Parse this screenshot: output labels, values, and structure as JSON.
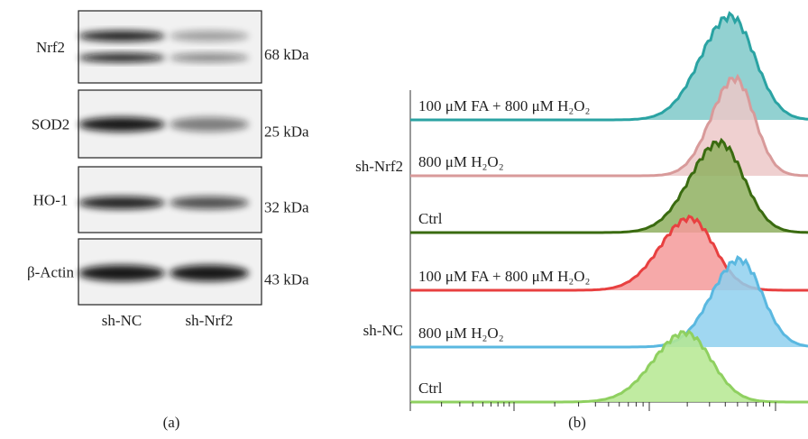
{
  "panel_a": {
    "label": "(a)",
    "rows": [
      {
        "protein": "Nrf2",
        "size": "68 kDa"
      },
      {
        "protein": "SOD2",
        "size": "25 kDa"
      },
      {
        "protein": "HO-1",
        "size": "32 kDa"
      },
      {
        "protein": "β-Actin",
        "size": "43 kDa"
      }
    ],
    "lanes": [
      "sh-NC",
      "sh-Nrf2"
    ]
  },
  "panel_b": {
    "label": "(b)",
    "groups": [
      {
        "name": "sh-Nrf2",
        "tracks": [
          "100 μM FA + 800 μM H₂O₂",
          "800 μM H₂O₂",
          "Ctrl"
        ]
      },
      {
        "name": "sh-NC",
        "tracks": [
          "100 μM FA + 800 μM H₂O₂",
          "800 μM H₂O₂",
          "Ctrl"
        ]
      }
    ]
  }
}
